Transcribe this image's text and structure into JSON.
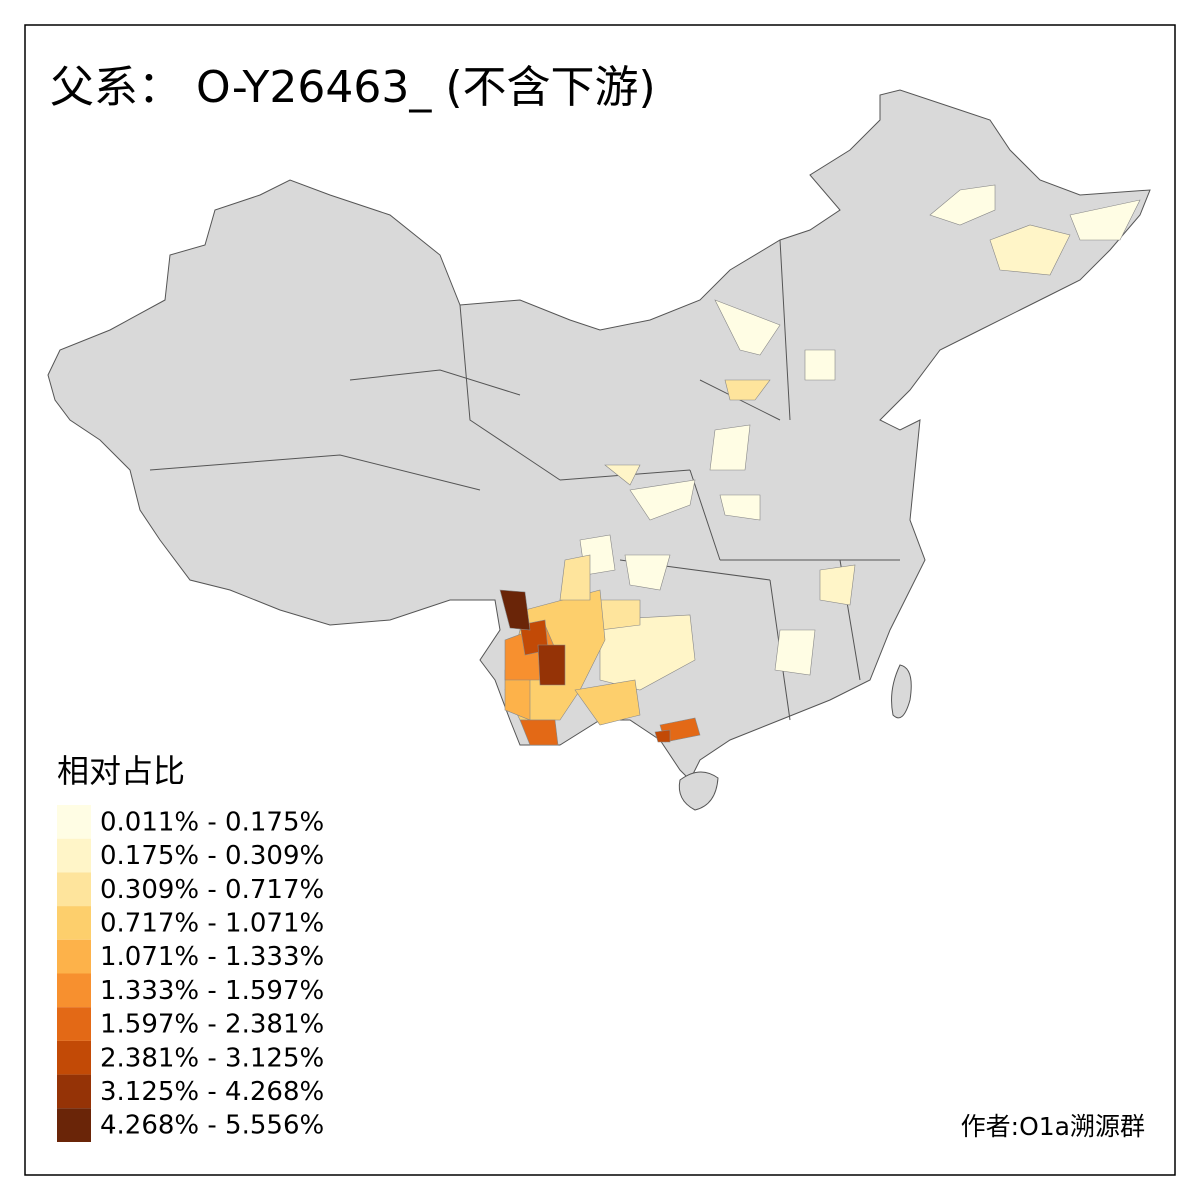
{
  "title": "父系： O-Y26463_ (不含下游)",
  "legend": {
    "title": "相对占比",
    "items": [
      {
        "label": "0.011% - 0.175%",
        "color": "#fffde4"
      },
      {
        "label": "0.175% - 0.309%",
        "color": "#fff5c8"
      },
      {
        "label": "0.309% - 0.717%",
        "color": "#fee49c"
      },
      {
        "label": "0.717% - 1.071%",
        "color": "#fdcf6c"
      },
      {
        "label": "1.071% - 1.333%",
        "color": "#fdb24a"
      },
      {
        "label": "1.333% - 1.597%",
        "color": "#f7902f"
      },
      {
        "label": "1.597% - 2.381%",
        "color": "#e36916"
      },
      {
        "label": "2.381% - 3.125%",
        "color": "#c24a06"
      },
      {
        "label": "3.125% - 4.268%",
        "color": "#953306"
      },
      {
        "label": "4.268% - 5.556%",
        "color": "#6a2508"
      }
    ]
  },
  "credit": "作者:O1a溯源群"
}
